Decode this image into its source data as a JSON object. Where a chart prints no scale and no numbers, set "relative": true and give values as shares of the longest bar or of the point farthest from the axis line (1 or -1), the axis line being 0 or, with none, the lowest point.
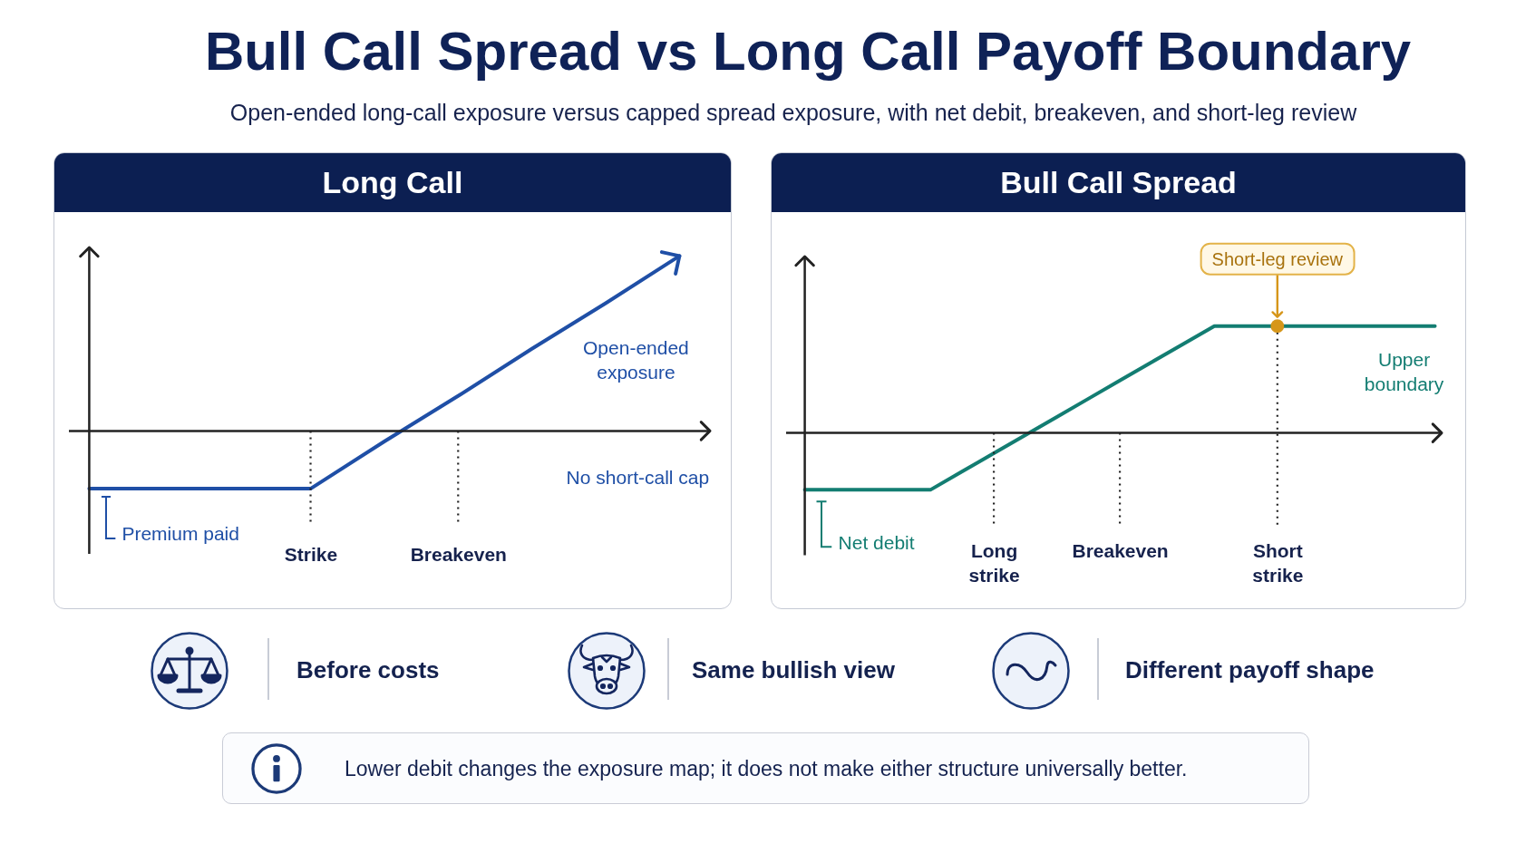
{
  "chart_data": [
    {
      "type": "other",
      "title": "Bull Call Spread vs Long Call Payoff Boundary",
      "subtitle": "Open-ended long-call exposure versus capped spread exposure, with net debit, breakeven, and short-leg review"
    },
    {
      "type": "line",
      "title": "Long Call",
      "relative": true,
      "categories": [
        null,
        null,
        null,
        "Strike",
        null,
        "Breakeven",
        null,
        null,
        null
      ],
      "series": [
        {
          "color": "#1f4fa6",
          "values": [
            -0.33,
            -0.33,
            -0.33,
            -0.33,
            -0.06,
            0.2,
            0.47,
            0.73,
            1
          ]
        }
      ],
      "ref_lines": [
        {
          "axis": "x",
          "value": "Strike",
          "line_style": "dotted",
          "color": "#222222"
        },
        {
          "axis": "x",
          "value": "Breakeven",
          "line_style": "dotted",
          "color": "#222222"
        }
      ],
      "annotations": [
        {
          "text": "Premium paid",
          "y": -0.33
        },
        "Open-ended exposure",
        "No short-call cap"
      ]
    },
    {
      "type": "line",
      "title": "Bull Call Spread",
      "relative": true,
      "categories": [
        null,
        null,
        null,
        null,
        null,
        null,
        "Long strike",
        null,
        null,
        null,
        "Breakeven",
        null,
        null,
        null,
        null,
        "Short strike",
        null,
        null,
        null,
        null,
        null
      ],
      "series": [
        {
          "color": "#137d72",
          "values": [
            -0.53,
            -0.53,
            -0.53,
            -0.53,
            -0.53,
            -0.36,
            -0.19,
            -0.02,
            0.15,
            0.32,
            0.49,
            0.66,
            0.83,
            1,
            1,
            1,
            1,
            1,
            1,
            1,
            1
          ]
        },
        {
          "type": "scatter",
          "x": [
            "Short strike"
          ],
          "values": [
            1
          ],
          "color": "#d6961a",
          "marker": "circle"
        }
      ],
      "ref_lines": [
        {
          "axis": "x",
          "value": "Long strike",
          "line_style": "dotted",
          "color": "#222222"
        },
        {
          "axis": "x",
          "value": "Breakeven",
          "line_style": "dotted",
          "color": "#222222"
        },
        {
          "axis": "x",
          "value": "Short strike",
          "line_style": "dotted",
          "color": "#222222"
        }
      ],
      "annotations": [
        {
          "text": "Net debit",
          "y": -0.53
        },
        "Short-leg review",
        {
          "text": "Upper boundary",
          "y": 1
        }
      ]
    },
    {
      "type": "other",
      "annotations": [
        "Before costs",
        "Same bullish view",
        "Different payoff shape",
        "Lower debit changes the exposure map; it does not make either structure universally better."
      ]
    }
  ]
}
